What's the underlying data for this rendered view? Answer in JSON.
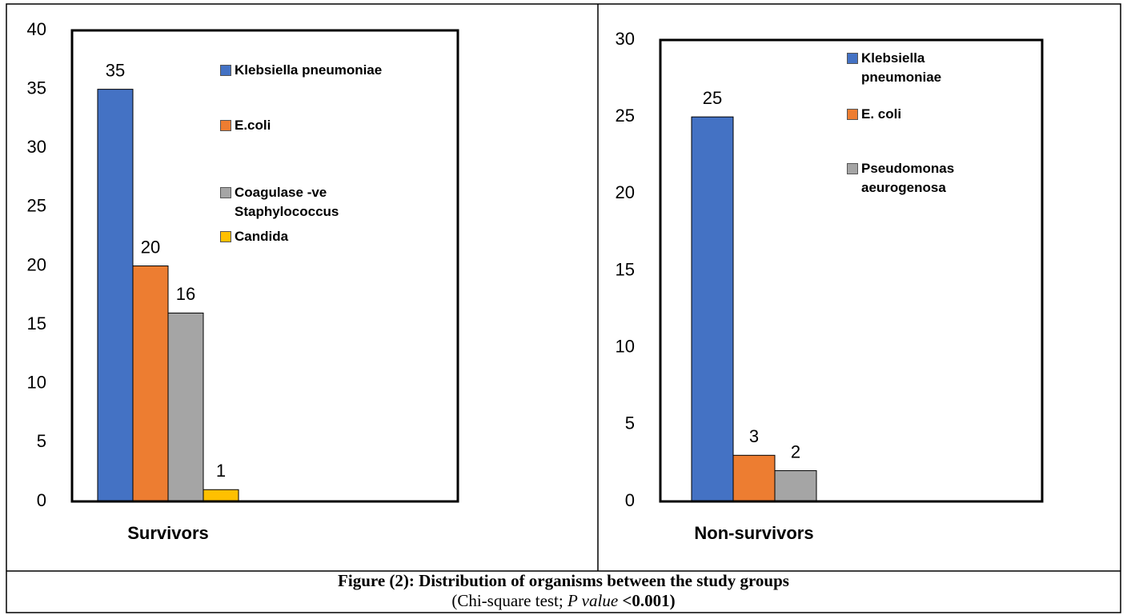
{
  "chart_data": [
    {
      "type": "bar",
      "categories": [
        "Survivors"
      ],
      "series": [
        {
          "name": "Klebsiella pneumoniae",
          "color": "#4472c4",
          "values": [
            35
          ]
        },
        {
          "name": "E.coli",
          "color": "#ed7d31",
          "values": [
            20
          ]
        },
        {
          "name": "Coagulase -ve Staphylococcus",
          "color": "#a5a5a5",
          "values": [
            16
          ]
        },
        {
          "name": "Candida",
          "color": "#ffc000",
          "values": [
            1
          ]
        }
      ],
      "ylim": [
        0,
        40
      ],
      "yticks": [
        0,
        5,
        10,
        15,
        20,
        25,
        30,
        35,
        40
      ],
      "legend": "top-right",
      "grid": false
    },
    {
      "type": "bar",
      "categories": [
        "Non-survivors"
      ],
      "series": [
        {
          "name": "Klebsiella pneumoniae",
          "color": "#4472c4",
          "values": [
            25
          ]
        },
        {
          "name": "E. coli",
          "color": "#ed7d31",
          "values": [
            3
          ]
        },
        {
          "name": "Pseudomonas aeurogenosa",
          "color": "#a5a5a5",
          "values": [
            2
          ]
        }
      ],
      "ylim": [
        0,
        30
      ],
      "yticks": [
        0,
        5,
        10,
        15,
        20,
        25,
        30
      ],
      "legend": "top-right",
      "grid": false
    }
  ],
  "caption": {
    "title": "Figure (2): Distribution of organisms between the study groups",
    "note": [
      "(Chi-square test; ",
      "P value",
      " <0.001)"
    ]
  }
}
